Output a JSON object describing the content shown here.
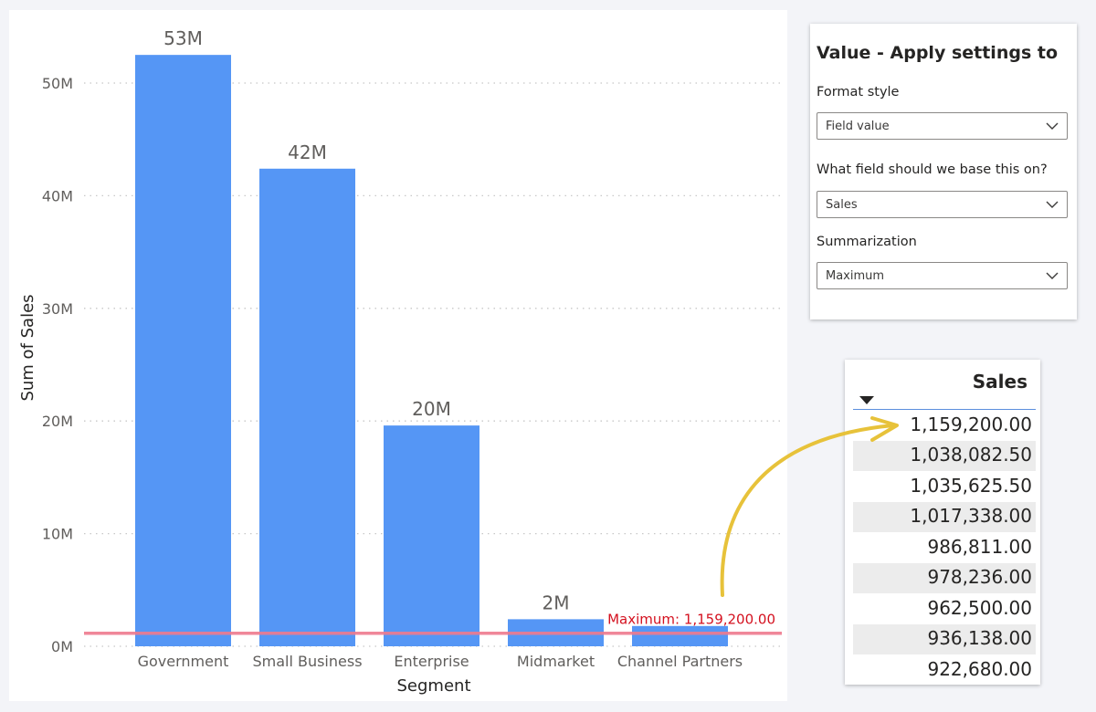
{
  "chart_data": {
    "type": "bar",
    "categories": [
      "Government",
      "Small Business",
      "Enterprise",
      "Midmarket",
      "Channel Partners"
    ],
    "values": [
      52.5,
      42.4,
      19.6,
      2.4,
      1.8
    ],
    "data_labels": [
      "53M",
      "42M",
      "20M",
      "2M",
      ""
    ],
    "xlabel": "Segment",
    "ylabel": "Sum of Sales",
    "yticks": [
      0,
      10,
      20,
      30,
      40,
      50
    ],
    "ytick_labels": [
      "0M",
      "10M",
      "20M",
      "30M",
      "40M",
      "50M"
    ],
    "ylim": [
      0,
      55
    ],
    "value_unit": "M",
    "grid": true,
    "reference_line": {
      "label": "Maximum: 1,159,200.00",
      "value": 1.1592
    },
    "colors": {
      "bar": "#5596f5",
      "reference_line": "#ef7b8f",
      "reference_label": "#d4111f"
    }
  },
  "settings_panel": {
    "title": "Value - Apply settings to",
    "format_style": {
      "label": "Format style",
      "value": "Field value"
    },
    "base_field": {
      "label": "What field should we base this on?",
      "value": "Sales"
    },
    "summarization": {
      "label": "Summarization",
      "value": "Maximum"
    },
    "chevron_icon": "chevron-down-icon"
  },
  "sales_table": {
    "header": "Sales",
    "sort_icon": "sort-descending-icon",
    "rows": [
      "1,159,200.00",
      "1,038,082.50",
      "1,035,625.50",
      "1,017,338.00",
      "986,811.00",
      "978,236.00",
      "962,500.00",
      "936,138.00",
      "922,680.00"
    ]
  },
  "annotation": {
    "arrow_icon": "curved-arrow-icon",
    "color": "#e7c23a"
  }
}
